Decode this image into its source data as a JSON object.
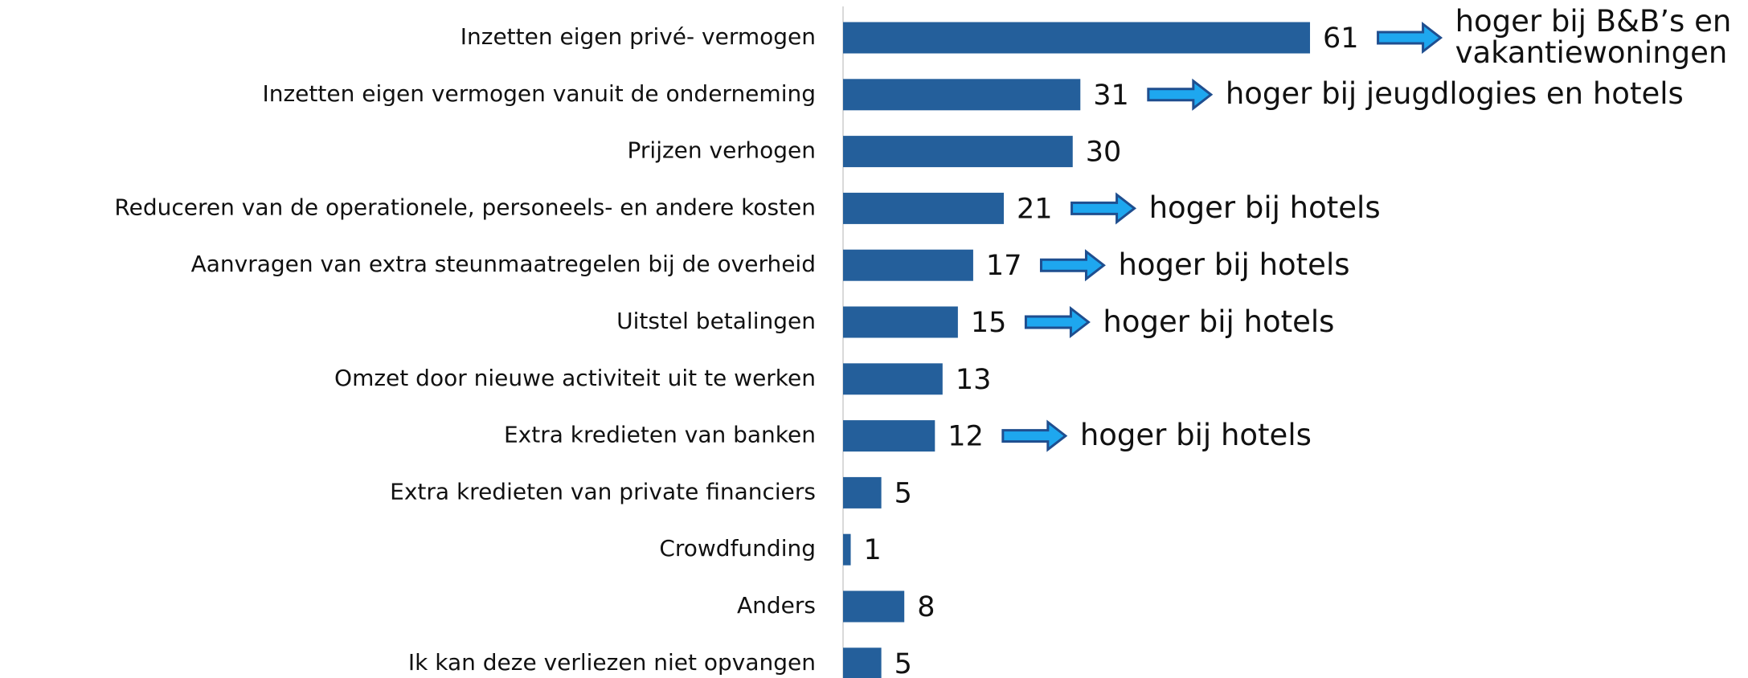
{
  "chart_data": {
    "type": "bar",
    "orientation": "horizontal",
    "categories": [
      "Inzetten eigen privé- vermogen",
      "Inzetten eigen vermogen vanuit de onderneming",
      "Prijzen verhogen",
      "Reduceren van de operationele, personeels- en andere kosten",
      "Aanvragen van extra steunmaatregelen bij de overheid",
      "Uitstel betalingen",
      "Omzet door nieuwe activiteit uit te werken",
      "Extra kredieten van banken",
      "Extra kredieten van private financiers",
      "Crowdfunding",
      "Anders",
      "Ik kan deze verliezen niet opvangen"
    ],
    "values": [
      61,
      31,
      30,
      21,
      17,
      15,
      13,
      12,
      5,
      1,
      8,
      5
    ],
    "annotations": [
      "hoger bij B&B’s en vakantiewoningen",
      "hoger bij jeugdlogies en hotels",
      null,
      "hoger bij hotels",
      "hoger bij hotels",
      "hoger bij hotels",
      null,
      "hoger bij hotels",
      null,
      null,
      null,
      null
    ],
    "color": "#245f9b",
    "xlim": [
      0,
      80
    ]
  }
}
